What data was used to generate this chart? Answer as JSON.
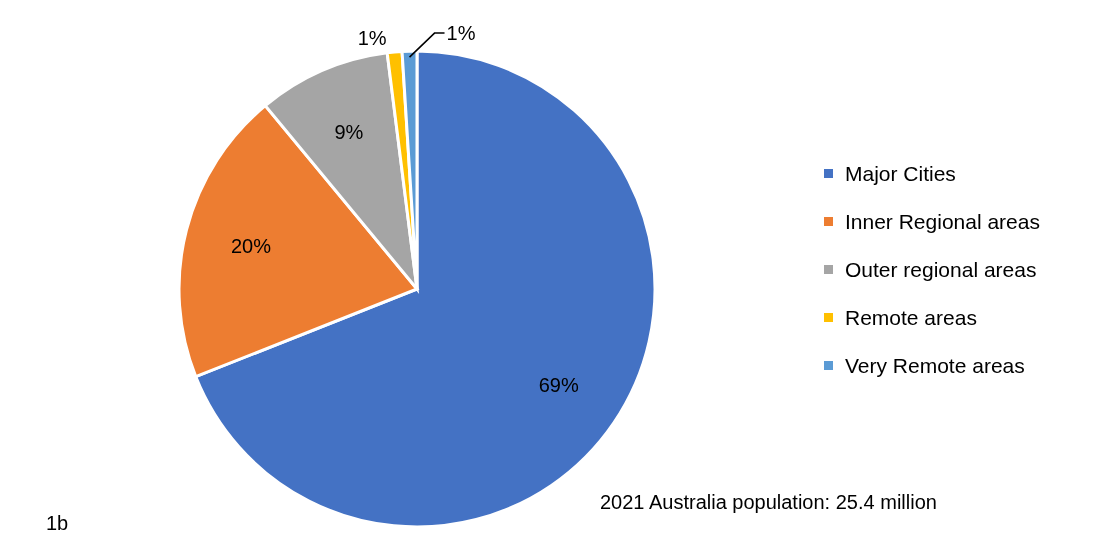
{
  "chart_data": {
    "type": "pie",
    "categories": [
      "Major Cities",
      "Inner Regional areas",
      "Outer regional areas",
      "Remote areas",
      "Very Remote areas"
    ],
    "values": [
      69,
      20,
      9,
      1,
      1
    ],
    "colors": [
      "#4472c4",
      "#ed7d31",
      "#a5a5a5",
      "#ffc000",
      "#5b9bd5"
    ],
    "value_labels": [
      "69%",
      "20%",
      "9%",
      "1%",
      "1%"
    ],
    "legend": "right",
    "annotations": [
      "2021 Australia population: 25.4 million",
      "1b"
    ]
  }
}
